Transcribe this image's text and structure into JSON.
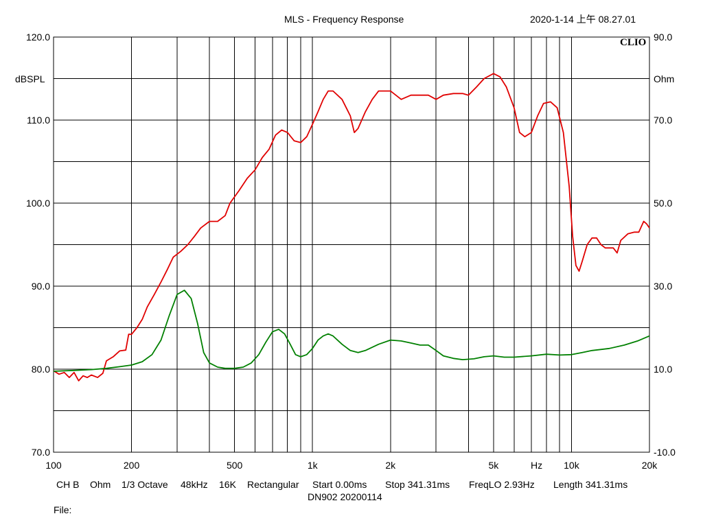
{
  "header": {
    "title": "MLS - Frequency Response",
    "timestamp": "2020-1-14 上午 08.27.01",
    "brand": "CLIO"
  },
  "footer": {
    "settings": [
      "CH B",
      "Ohm",
      "1/3 Octave",
      "48kHz",
      "16K",
      "Rectangular",
      "Start 0.00ms",
      "Stop 341.31ms",
      "FreqLO 2.93Hz",
      "Length 341.31ms"
    ],
    "device": "DN902  20200114",
    "file_label": "File:"
  },
  "chart_data": {
    "type": "line",
    "title": "MLS - Frequency Response",
    "xlabel": "Hz",
    "ylabel": "dBSPL",
    "y2label": "Ohm",
    "x_scale": "log",
    "xlim": [
      100,
      20000
    ],
    "ylim": [
      70,
      120
    ],
    "y2lim": [
      -10,
      90
    ],
    "grid": true,
    "x_ticks": [
      {
        "value": 100,
        "label": "100"
      },
      {
        "value": 200,
        "label": "200"
      },
      {
        "value": 500,
        "label": "500"
      },
      {
        "value": 1000,
        "label": "1k"
      },
      {
        "value": 2000,
        "label": "2k"
      },
      {
        "value": 5000,
        "label": "5k"
      },
      {
        "value": 10000,
        "label": "10k"
      },
      {
        "value": 20000,
        "label": "20k"
      }
    ],
    "y_ticks": [
      {
        "value": 120,
        "label": "120.0"
      },
      {
        "value": 110,
        "label": "110.0"
      },
      {
        "value": 100,
        "label": "100.0"
      },
      {
        "value": 90,
        "label": "90.0"
      },
      {
        "value": 80,
        "label": "80.0"
      },
      {
        "value": 70,
        "label": "70.0"
      }
    ],
    "y2_ticks": [
      {
        "value": 90,
        "label": "90.0"
      },
      {
        "value": 70,
        "label": "70.0"
      },
      {
        "value": 50,
        "label": "50.0"
      },
      {
        "value": 30,
        "label": "30.0"
      },
      {
        "value": 10,
        "label": "10.0"
      },
      {
        "value": -10,
        "label": "-10.0"
      }
    ],
    "series": [
      {
        "color": "#e00000",
        "axis": "left",
        "points": [
          [
            100,
            79.8
          ],
          [
            105,
            79.4
          ],
          [
            110,
            79.6
          ],
          [
            115,
            79.0
          ],
          [
            120,
            79.6
          ],
          [
            125,
            78.6
          ],
          [
            130,
            79.2
          ],
          [
            135,
            79.0
          ],
          [
            140,
            79.3
          ],
          [
            148,
            79.0
          ],
          [
            155,
            79.5
          ],
          [
            160,
            81.0
          ],
          [
            170,
            81.5
          ],
          [
            180,
            82.2
          ],
          [
            190,
            82.3
          ],
          [
            195,
            84.2
          ],
          [
            200,
            84.2
          ],
          [
            210,
            85.0
          ],
          [
            220,
            86.0
          ],
          [
            230,
            87.5
          ],
          [
            245,
            89.0
          ],
          [
            260,
            90.5
          ],
          [
            275,
            92.0
          ],
          [
            290,
            93.5
          ],
          [
            310,
            94.2
          ],
          [
            330,
            95.0
          ],
          [
            350,
            96.0
          ],
          [
            370,
            97.0
          ],
          [
            400,
            97.8
          ],
          [
            430,
            97.8
          ],
          [
            460,
            98.5
          ],
          [
            480,
            100.0
          ],
          [
            520,
            101.5
          ],
          [
            560,
            103.0
          ],
          [
            600,
            104.0
          ],
          [
            640,
            105.5
          ],
          [
            680,
            106.5
          ],
          [
            720,
            108.2
          ],
          [
            760,
            108.8
          ],
          [
            800,
            108.5
          ],
          [
            850,
            107.5
          ],
          [
            900,
            107.3
          ],
          [
            950,
            108.0
          ],
          [
            1000,
            109.5
          ],
          [
            1050,
            111.0
          ],
          [
            1100,
            112.5
          ],
          [
            1150,
            113.5
          ],
          [
            1200,
            113.5
          ],
          [
            1300,
            112.5
          ],
          [
            1400,
            110.5
          ],
          [
            1450,
            108.5
          ],
          [
            1500,
            109.0
          ],
          [
            1600,
            111.0
          ],
          [
            1700,
            112.5
          ],
          [
            1800,
            113.5
          ],
          [
            2000,
            113.5
          ],
          [
            2200,
            112.5
          ],
          [
            2400,
            113.0
          ],
          [
            2600,
            113.0
          ],
          [
            2800,
            113.0
          ],
          [
            3000,
            112.5
          ],
          [
            3200,
            113.0
          ],
          [
            3500,
            113.2
          ],
          [
            3800,
            113.2
          ],
          [
            4000,
            113.0
          ],
          [
            4300,
            114.0
          ],
          [
            4600,
            115.0
          ],
          [
            5000,
            115.6
          ],
          [
            5300,
            115.2
          ],
          [
            5600,
            114.0
          ],
          [
            6000,
            111.5
          ],
          [
            6300,
            108.5
          ],
          [
            6600,
            108.0
          ],
          [
            7000,
            108.5
          ],
          [
            7400,
            110.5
          ],
          [
            7800,
            112.0
          ],
          [
            8300,
            112.2
          ],
          [
            8800,
            111.5
          ],
          [
            9300,
            108.5
          ],
          [
            9800,
            102.0
          ],
          [
            10100,
            96.0
          ],
          [
            10400,
            92.5
          ],
          [
            10700,
            91.8
          ],
          [
            11000,
            93.0
          ],
          [
            11500,
            95.0
          ],
          [
            12000,
            95.8
          ],
          [
            12500,
            95.8
          ],
          [
            13000,
            95.0
          ],
          [
            13500,
            94.6
          ],
          [
            14500,
            94.6
          ],
          [
            15000,
            94.0
          ],
          [
            15500,
            95.5
          ],
          [
            16500,
            96.3
          ],
          [
            17500,
            96.5
          ],
          [
            18200,
            96.5
          ],
          [
            19000,
            97.8
          ],
          [
            19500,
            97.5
          ],
          [
            20000,
            97.0
          ]
        ]
      },
      {
        "color": "#008000",
        "axis": "right",
        "points": [
          [
            100,
            9.5
          ],
          [
            120,
            9.7
          ],
          [
            140,
            9.9
          ],
          [
            160,
            10.2
          ],
          [
            180,
            10.6
          ],
          [
            200,
            11.0
          ],
          [
            220,
            11.8
          ],
          [
            240,
            13.5
          ],
          [
            260,
            17.0
          ],
          [
            280,
            23.0
          ],
          [
            300,
            28.0
          ],
          [
            320,
            29.0
          ],
          [
            340,
            27.0
          ],
          [
            360,
            21.0
          ],
          [
            380,
            14.0
          ],
          [
            400,
            11.5
          ],
          [
            430,
            10.5
          ],
          [
            460,
            10.2
          ],
          [
            500,
            10.2
          ],
          [
            540,
            10.5
          ],
          [
            580,
            11.5
          ],
          [
            620,
            13.5
          ],
          [
            660,
            16.5
          ],
          [
            700,
            19.0
          ],
          [
            740,
            19.6
          ],
          [
            780,
            18.5
          ],
          [
            820,
            16.0
          ],
          [
            860,
            13.5
          ],
          [
            900,
            13.0
          ],
          [
            950,
            13.5
          ],
          [
            1000,
            15.0
          ],
          [
            1050,
            17.0
          ],
          [
            1100,
            18.0
          ],
          [
            1150,
            18.5
          ],
          [
            1200,
            18.0
          ],
          [
            1300,
            16.0
          ],
          [
            1400,
            14.5
          ],
          [
            1500,
            14.0
          ],
          [
            1600,
            14.5
          ],
          [
            1800,
            16.0
          ],
          [
            2000,
            17.0
          ],
          [
            2200,
            16.8
          ],
          [
            2400,
            16.3
          ],
          [
            2600,
            15.8
          ],
          [
            2800,
            15.8
          ],
          [
            3000,
            14.5
          ],
          [
            3200,
            13.2
          ],
          [
            3500,
            12.6
          ],
          [
            3800,
            12.3
          ],
          [
            4200,
            12.5
          ],
          [
            4600,
            13.0
          ],
          [
            5000,
            13.2
          ],
          [
            5500,
            12.9
          ],
          [
            6000,
            12.9
          ],
          [
            7000,
            13.2
          ],
          [
            8000,
            13.6
          ],
          [
            9000,
            13.4
          ],
          [
            10000,
            13.5
          ],
          [
            11000,
            14.0
          ],
          [
            12000,
            14.5
          ],
          [
            14000,
            15.0
          ],
          [
            16000,
            15.8
          ],
          [
            18000,
            16.8
          ],
          [
            20000,
            18.0
          ]
        ]
      }
    ]
  }
}
